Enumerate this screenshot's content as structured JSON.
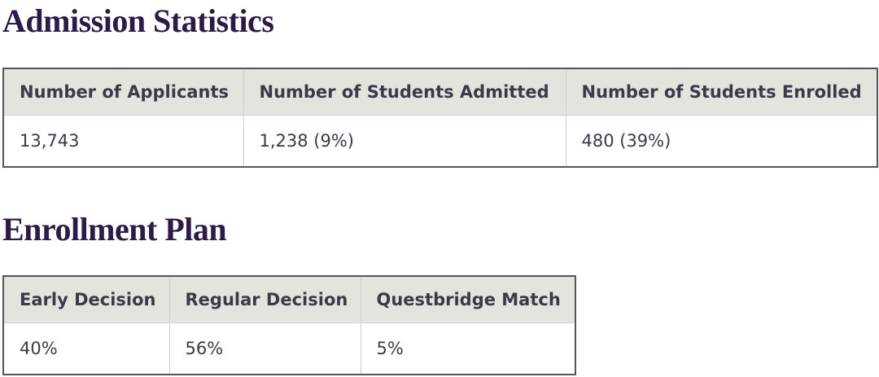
{
  "sections": [
    {
      "title": "Admission Statistics",
      "table": {
        "headers": [
          "Number of Applicants",
          "Number of Students Admitted",
          "Number of Students Enrolled"
        ],
        "rows": [
          [
            "13,743",
            "1,238 (9%)",
            "480 (39%)"
          ]
        ]
      }
    },
    {
      "title": "Enrollment Plan",
      "table": {
        "headers": [
          "Early Decision",
          "Regular Decision",
          "Questbridge Match"
        ],
        "rows": [
          [
            "40%",
            "56%",
            "5%"
          ]
        ]
      }
    }
  ]
}
